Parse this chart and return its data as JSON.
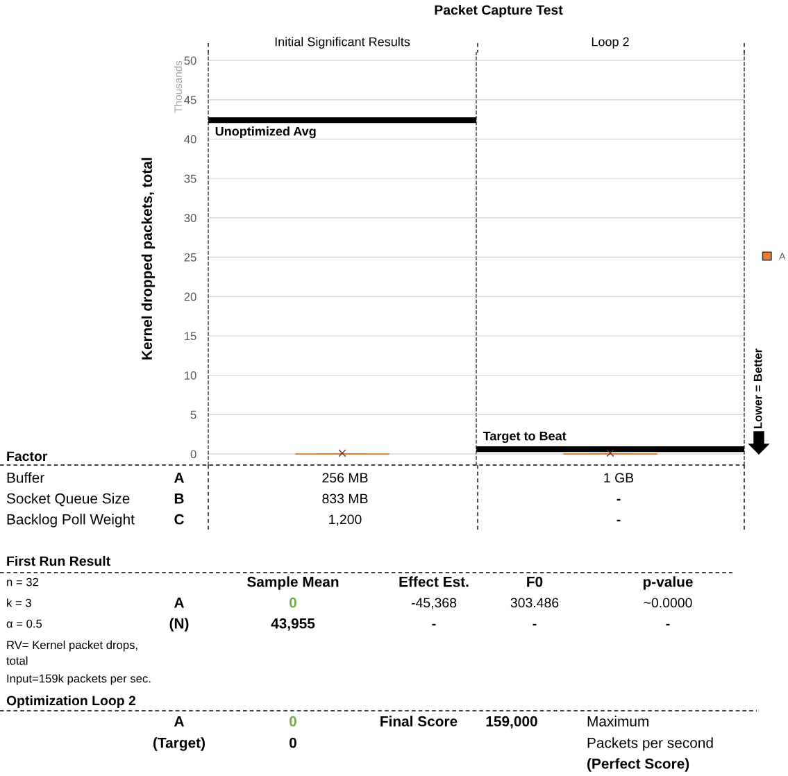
{
  "chart_data": {
    "type": "box",
    "title": "Packet Capture Test",
    "ylabel": "Kernel dropped packets, total",
    "categories": [
      "Initial Significant Results",
      "Loop 2"
    ],
    "series": [
      {
        "name": "A",
        "color": "#ed7d31",
        "boxes": [
          {
            "low": 0,
            "q1": 0,
            "median": 0,
            "q3": 0,
            "high": 0,
            "mean": 0.1
          },
          {
            "low": 0,
            "q1": 0,
            "median": 0,
            "q3": 0,
            "high": 0,
            "mean": 0.1
          }
        ]
      }
    ],
    "ylim": [
      -1.4,
      51
    ],
    "yticks": [
      0,
      5,
      10,
      15,
      20,
      25,
      30,
      35,
      40,
      45,
      50
    ],
    "grid": "y",
    "legend": "right",
    "ref_lines": [
      {
        "axis": "y",
        "value": 42.4,
        "label": "Unoptimized Avg",
        "color": "#000000"
      },
      {
        "axis": "y",
        "value": 0.6,
        "label": "Target to Beat",
        "color": "#000000"
      }
    ],
    "annotations": [
      "Thousands",
      "Lower = Better",
      "Factor",
      "Buffer",
      "A",
      "256 MB",
      "1 GB",
      "Socket Queue Size",
      "B",
      "833 MB",
      "-",
      "Backlog Poll Weight",
      "C",
      "1,200",
      "-",
      "First Run Result",
      "n = 32",
      "Sample Mean",
      "Effect Est.",
      "F0",
      "p-value",
      "k = 3",
      "A",
      "0",
      "-45,368",
      "303.486",
      "~0.0000",
      "α = 0.5",
      "(N)",
      "43,955",
      "-",
      "-",
      "-",
      "RV= Kernel packet drops,\ntotal",
      "Input=159k packets per sec.",
      "Optimization Loop 2",
      "A",
      "0",
      "Final Score",
      "159,000",
      "Maximum",
      "(Target)",
      "0",
      "Packets per second",
      "(Perfect Score)"
    ]
  }
}
